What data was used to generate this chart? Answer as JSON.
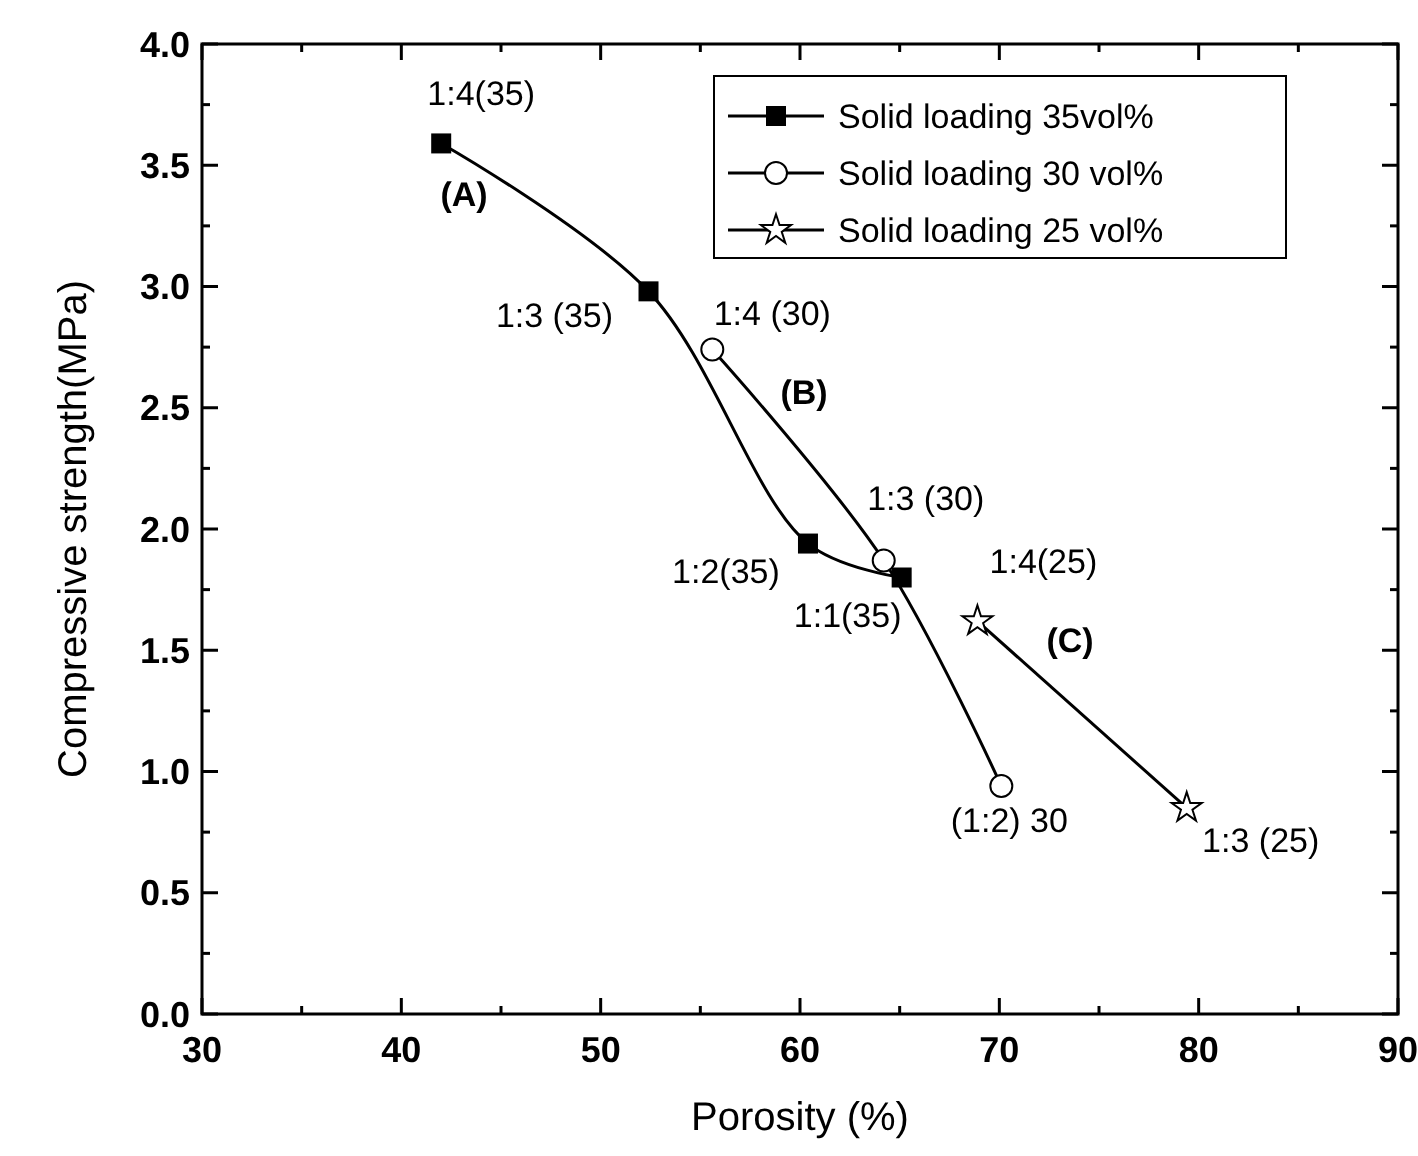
{
  "chart_data": {
    "type": "line",
    "xlabel": "Porosity (%)",
    "ylabel": "Compressive strength(MPa)",
    "xlim": [
      30,
      90
    ],
    "ylim": [
      0,
      4
    ],
    "xticks": [
      30,
      {
        "value": 35,
        "label": null
      },
      40,
      {
        "value": 45,
        "label": null
      },
      50,
      {
        "value": 55,
        "label": null
      },
      60,
      {
        "value": 65,
        "label": null
      },
      70,
      {
        "value": 75,
        "label": null
      },
      80,
      {
        "value": 85,
        "label": null
      },
      90
    ],
    "yticks": [
      {
        "value": 0,
        "label": "0.0"
      },
      {
        "value": 0.25,
        "label": null
      },
      {
        "value": 0.5,
        "label": "0.5"
      },
      {
        "value": 0.75,
        "label": null
      },
      {
        "value": 1,
        "label": "1.0"
      },
      {
        "value": 1.25,
        "label": null
      },
      {
        "value": 1.5,
        "label": "1.5"
      },
      {
        "value": 1.75,
        "label": null
      },
      {
        "value": 2,
        "label": "2.0"
      },
      {
        "value": 2.25,
        "label": null
      },
      {
        "value": 2.5,
        "label": "2.5"
      },
      {
        "value": 2.75,
        "label": null
      },
      {
        "value": 3,
        "label": "3.0"
      },
      {
        "value": 3.25,
        "label": null
      },
      {
        "value": 3.5,
        "label": "3.5"
      },
      {
        "value": 3.75,
        "label": null
      },
      {
        "value": 4,
        "label": "4.0"
      }
    ],
    "grid": false,
    "legend": "top right",
    "line_style": "solid",
    "series": [
      {
        "name": "Solid loading 35vol%",
        "color": "#000000",
        "marker": "square",
        "x": [
          42.0,
          52.4,
          60.4,
          65.1
        ],
        "values": [
          3.59,
          2.98,
          1.94,
          1.8
        ]
      },
      {
        "name": "Solid loading 30 vol%",
        "color": "#000000",
        "marker": "circle",
        "x": [
          55.6,
          64.2,
          70.1
        ],
        "values": [
          2.74,
          1.87,
          0.94
        ]
      },
      {
        "name": "Solid loading 25 vol%",
        "color": "#000000",
        "marker": "star",
        "x": [
          68.9,
          79.4
        ],
        "values": [
          1.62,
          0.85
        ]
      }
    ],
    "annotations": [
      {
        "text": "1:4(35)",
        "x": 42.0,
        "y": 3.59
      },
      {
        "text": "1:3 (35)",
        "x": 52.4,
        "y": 2.98
      },
      {
        "text": "1:4 (30)",
        "x": 55.6,
        "y": 2.74
      },
      {
        "text": "1:2(35)",
        "x": 60.4,
        "y": 1.94
      },
      {
        "text": "1:3 (30)",
        "x": 64.2,
        "y": 1.87
      },
      {
        "text": "1:1(35)",
        "x": 65.1,
        "y": 1.8
      },
      {
        "text": "1:4(25)",
        "x": 68.9,
        "y": 1.62
      },
      {
        "text": "(1:2) 30",
        "x": 70.1,
        "y": 0.94
      },
      {
        "text": "1:3 (25)",
        "x": 79.4,
        "y": 0.85
      },
      "(A)",
      "(B)",
      "(C)"
    ]
  }
}
